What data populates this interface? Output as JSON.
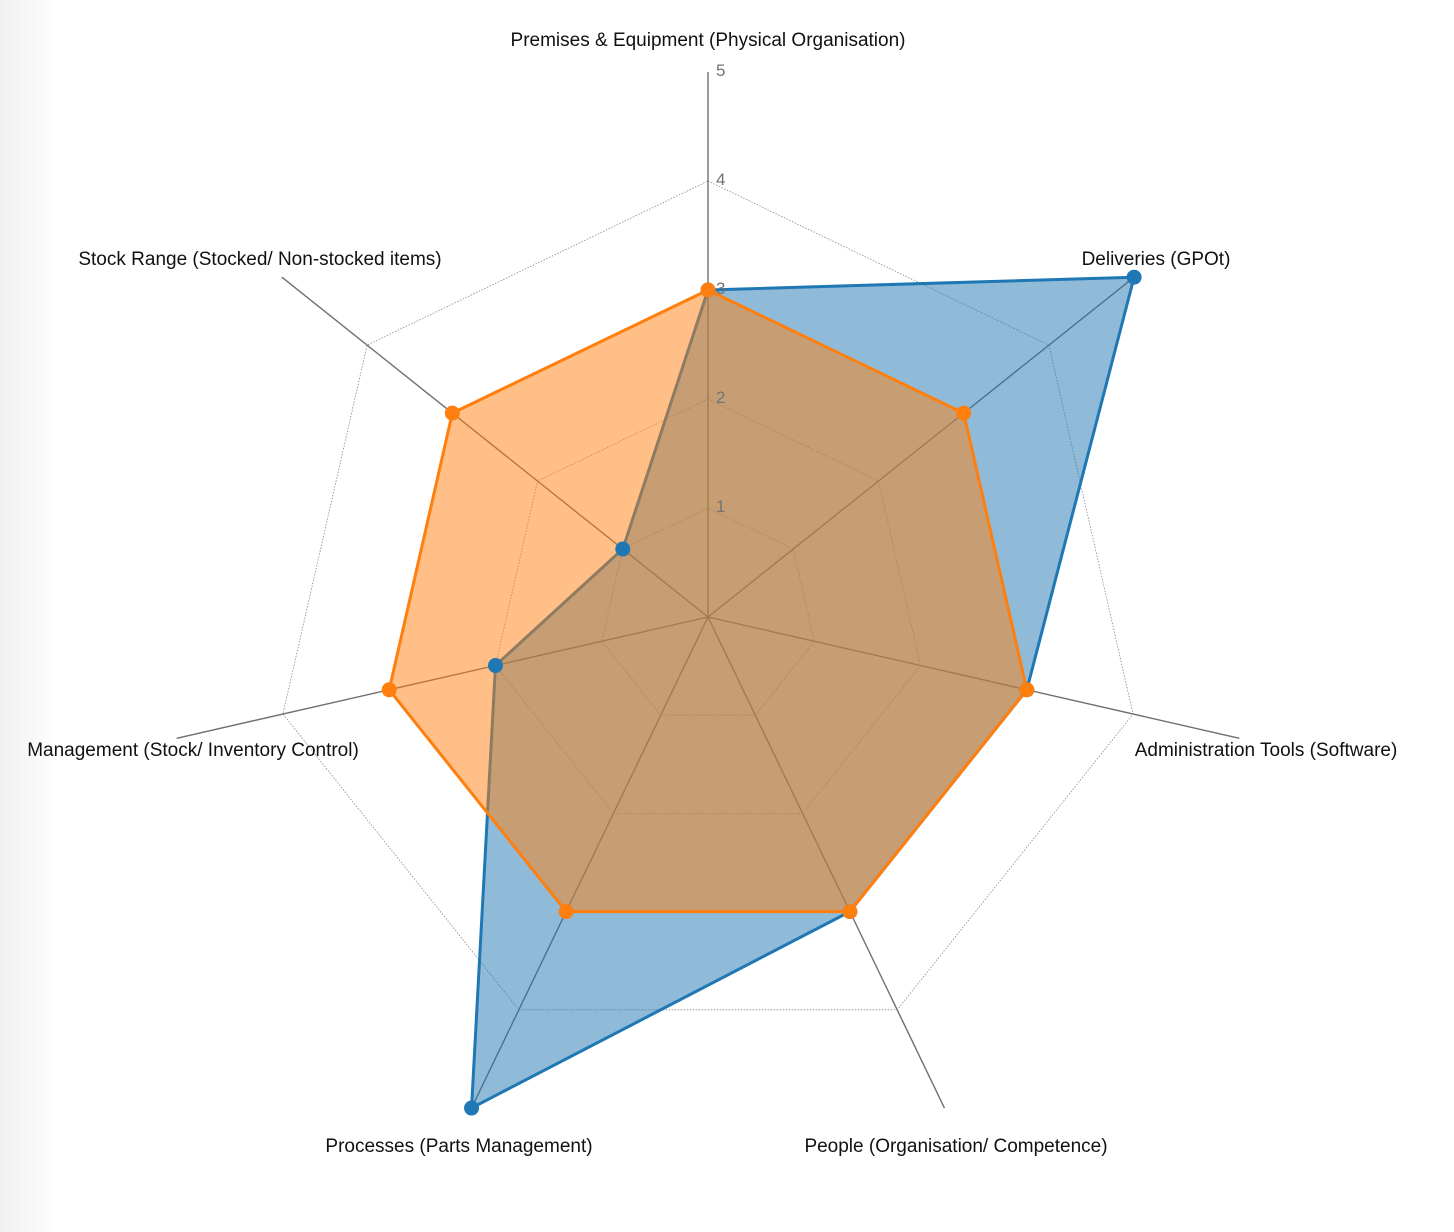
{
  "chart_data": {
    "type": "radar",
    "title": "",
    "axes": [
      "Premises & Equipment (Physical Organisation)",
      "Deliveries (GPOt)",
      "Administration Tools (Software)",
      "People (Organisation/ Competence)",
      "Processes (Parts Management)",
      "Management (Stock/ Inventory Control)",
      "Stock Range (Stocked/ Non-stocked items)"
    ],
    "rticks": [
      "1",
      "2",
      "3",
      "4",
      "5"
    ],
    "rrange": [
      0,
      5
    ],
    "series": [
      {
        "values": [
          3,
          5,
          3,
          3,
          5,
          2,
          1
        ],
        "color": "#1f77b4"
      },
      {
        "values": [
          3,
          3,
          3,
          3,
          3,
          3,
          3
        ],
        "color": "#ff7f0e"
      }
    ],
    "grid": true,
    "legend": "none"
  }
}
